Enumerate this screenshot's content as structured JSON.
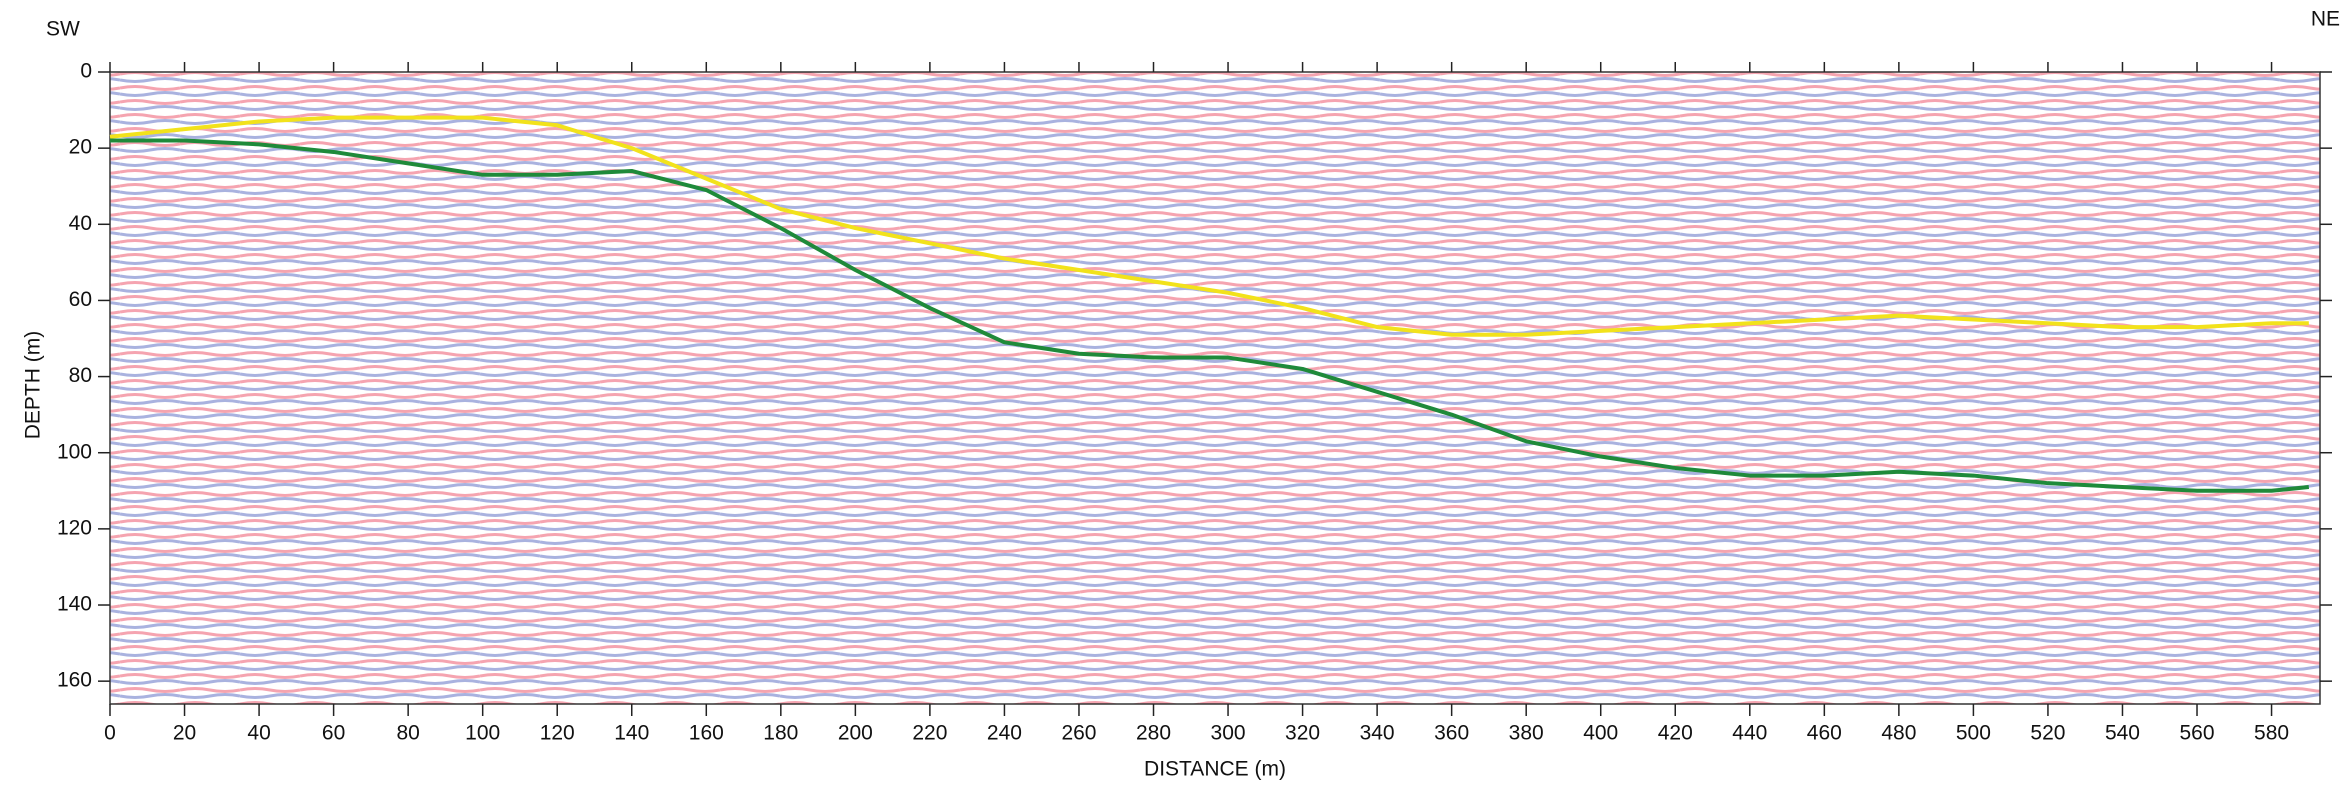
{
  "chart_data": {
    "type": "line",
    "annotations": {
      "left": "SW",
      "right": "NE"
    },
    "x_label": "DISTANCE (m)",
    "y_label": "DEPTH (m)",
    "x": [
      0,
      20,
      40,
      60,
      80,
      100,
      120,
      140,
      160,
      180,
      200,
      220,
      240,
      260,
      280,
      300,
      320,
      340,
      360,
      380,
      400,
      420,
      440,
      460,
      480,
      500,
      520,
      540,
      560,
      580,
      590
    ],
    "series": [
      {
        "color": "#f2e21b",
        "values": [
          17,
          15,
          13,
          12,
          12,
          12,
          14,
          20,
          28,
          36,
          41,
          45,
          49,
          52,
          55,
          58,
          62,
          67,
          69,
          69,
          68,
          67,
          66,
          65,
          64,
          65,
          66,
          67,
          67,
          66,
          66
        ]
      },
      {
        "color": "#1f8a3a",
        "values": [
          18,
          18,
          19,
          21,
          24,
          27,
          27,
          26,
          31,
          41,
          52,
          62,
          71,
          74,
          75,
          75,
          78,
          84,
          90,
          97,
          101,
          104,
          106,
          106,
          105,
          106,
          108,
          109,
          110,
          110,
          109
        ]
      }
    ],
    "xlim": [
      0,
      593
    ],
    "ylim": [
      0,
      166
    ],
    "y_inverted": true,
    "xticks": [
      0,
      20,
      40,
      60,
      80,
      100,
      120,
      140,
      160,
      180,
      200,
      220,
      240,
      260,
      280,
      300,
      320,
      340,
      360,
      380,
      400,
      420,
      440,
      460,
      480,
      500,
      520,
      540,
      560,
      580
    ],
    "yticks": [
      0,
      20,
      40,
      60,
      80,
      100,
      120,
      140,
      160
    ]
  }
}
